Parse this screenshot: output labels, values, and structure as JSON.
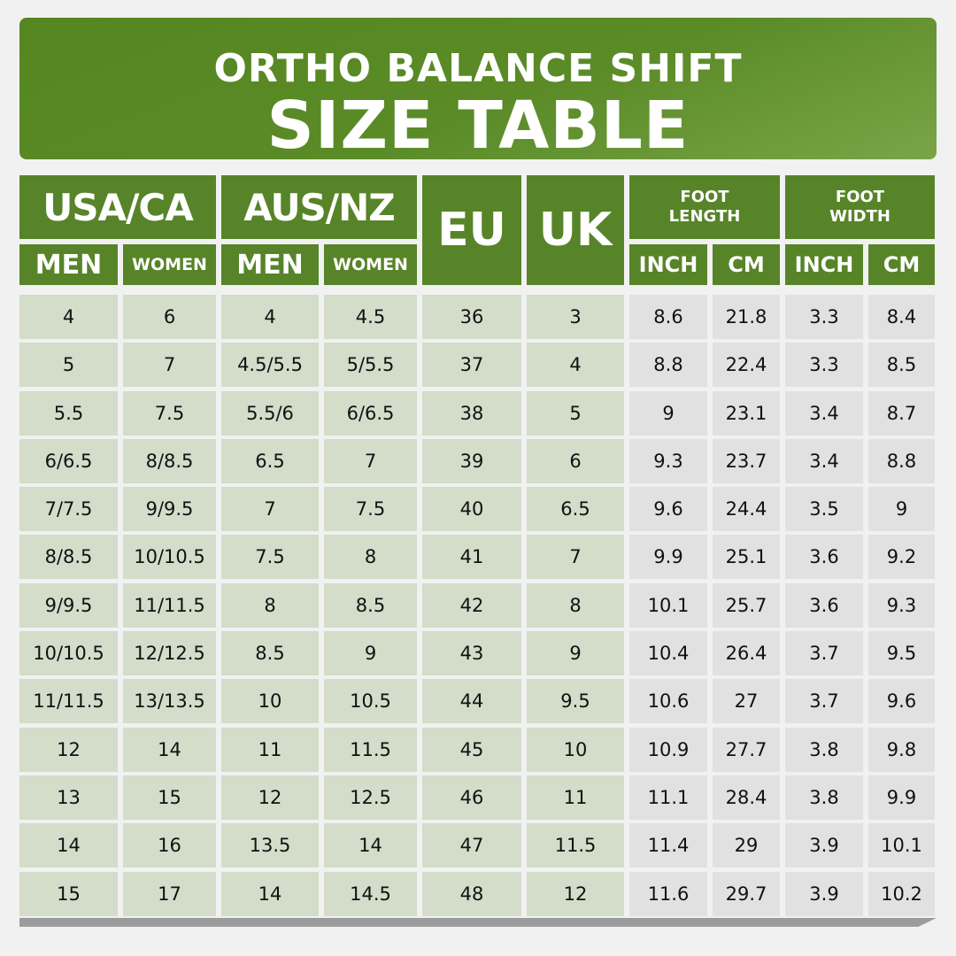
{
  "title": {
    "line1": "ORTHO BALANCE SHIFT",
    "line2": "SIZE TABLE"
  },
  "colors": {
    "header_green": "#578429",
    "size_cell": "#d3ddca",
    "measure_cell": "#e1e1e1"
  },
  "headers": {
    "usa": "USA/CA",
    "aus": "AUS/NZ",
    "eu": "EU",
    "uk": "UK",
    "foot_length": "FOOT LENGTH",
    "foot_width": "FOOT WIDTH",
    "men": "MEN",
    "women": "WOMEN",
    "inch": "INCH",
    "cm": "CM"
  },
  "rows": [
    [
      "4",
      "6",
      "4",
      "4.5",
      "36",
      "3",
      "8.6",
      "21.8",
      "3.3",
      "8.4"
    ],
    [
      "5",
      "7",
      "4.5/5.5",
      "5/5.5",
      "37",
      "4",
      "8.8",
      "22.4",
      "3.3",
      "8.5"
    ],
    [
      "5.5",
      "7.5",
      "5.5/6",
      "6/6.5",
      "38",
      "5",
      "9",
      "23.1",
      "3.4",
      "8.7"
    ],
    [
      "6/6.5",
      "8/8.5",
      "6.5",
      "7",
      "39",
      "6",
      "9.3",
      "23.7",
      "3.4",
      "8.8"
    ],
    [
      "7/7.5",
      "9/9.5",
      "7",
      "7.5",
      "40",
      "6.5",
      "9.6",
      "24.4",
      "3.5",
      "9"
    ],
    [
      "8/8.5",
      "10/10.5",
      "7.5",
      "8",
      "41",
      "7",
      "9.9",
      "25.1",
      "3.6",
      "9.2"
    ],
    [
      "9/9.5",
      "11/11.5",
      "8",
      "8.5",
      "42",
      "8",
      "10.1",
      "25.7",
      "3.6",
      "9.3"
    ],
    [
      "10/10.5",
      "12/12.5",
      "8.5",
      "9",
      "43",
      "9",
      "10.4",
      "26.4",
      "3.7",
      "9.5"
    ],
    [
      "11/11.5",
      "13/13.5",
      "10",
      "10.5",
      "44",
      "9.5",
      "10.6",
      "27",
      "3.7",
      "9.6"
    ],
    [
      "12",
      "14",
      "11",
      "11.5",
      "45",
      "10",
      "10.9",
      "27.7",
      "3.8",
      "9.8"
    ],
    [
      "13",
      "15",
      "12",
      "12.5",
      "46",
      "11",
      "11.1",
      "28.4",
      "3.8",
      "9.9"
    ],
    [
      "14",
      "16",
      "13.5",
      "14",
      "47",
      "11.5",
      "11.4",
      "29",
      "3.9",
      "10.1"
    ],
    [
      "15",
      "17",
      "14",
      "14.5",
      "48",
      "12",
      "11.6",
      "29.7",
      "3.9",
      "10.2"
    ]
  ]
}
